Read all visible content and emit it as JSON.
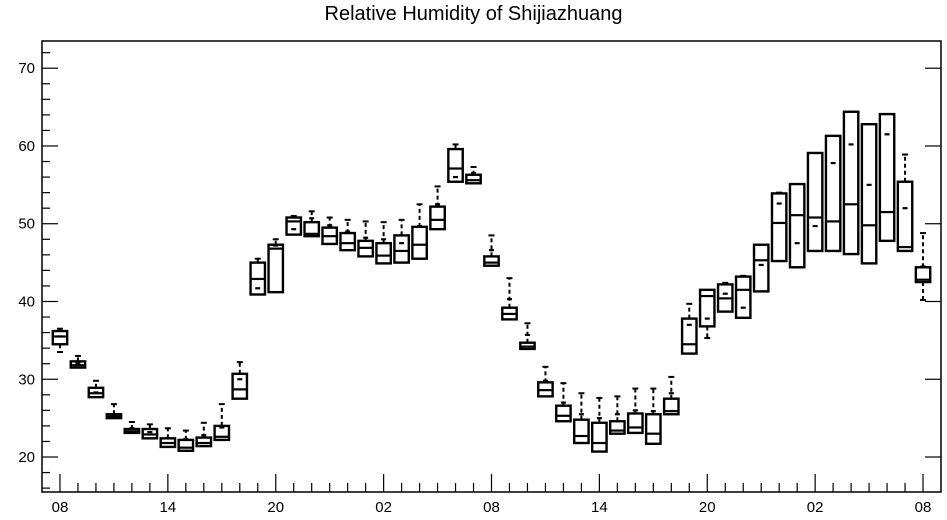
{
  "chart_data": {
    "type": "boxplot",
    "title": "Relative Humidity of Shijiazhuang",
    "xlabel": "",
    "ylabel": "",
    "ylim": [
      15.5,
      73.5
    ],
    "y_ticks": [
      20,
      30,
      40,
      50,
      60,
      70
    ],
    "x_tick_labels": [
      "08",
      "14",
      "20",
      "02",
      "08",
      "14",
      "20",
      "02",
      "08"
    ],
    "x_tick_hours": [
      0,
      6,
      12,
      18,
      24,
      30,
      36,
      42,
      48
    ],
    "x_range_hours": [
      -1,
      49
    ],
    "grid": false,
    "legend": "none",
    "box_width_hours": 0.8,
    "boxes": [
      {
        "hour": 0,
        "q1": 34.5,
        "median": 35.5,
        "q3": 36.2,
        "mean": 35.5,
        "whisker_low": 33.5,
        "whisker_high": 36.5
      },
      {
        "hour": 1,
        "q1": 31.5,
        "median": 31.8,
        "q3": 32.3,
        "mean": 32.0,
        "whisker_low": 31.5,
        "whisker_high": 33.0
      },
      {
        "hour": 2,
        "q1": 27.7,
        "median": 28.2,
        "q3": 28.9,
        "mean": 28.3,
        "whisker_low": 27.7,
        "whisker_high": 29.8
      },
      {
        "hour": 3,
        "q1": 25.0,
        "median": 25.2,
        "q3": 25.5,
        "mean": 25.3,
        "whisker_low": 25.0,
        "whisker_high": 26.8
      },
      {
        "hour": 4,
        "q1": 23.1,
        "median": 23.3,
        "q3": 23.6,
        "mean": 23.7,
        "whisker_low": 23.1,
        "whisker_high": 24.5
      },
      {
        "hour": 5,
        "q1": 22.4,
        "median": 22.9,
        "q3": 23.6,
        "mean": 23.2,
        "whisker_low": 22.4,
        "whisker_high": 24.2
      },
      {
        "hour": 6,
        "q1": 21.3,
        "median": 21.8,
        "q3": 22.4,
        "mean": 22.4,
        "whisker_low": 21.3,
        "whisker_high": 23.7
      },
      {
        "hour": 7,
        "q1": 20.8,
        "median": 21.2,
        "q3": 22.2,
        "mean": 22.3,
        "whisker_low": 20.8,
        "whisker_high": 23.4
      },
      {
        "hour": 8,
        "q1": 21.4,
        "median": 21.8,
        "q3": 22.5,
        "mean": 22.8,
        "whisker_low": 21.4,
        "whisker_high": 24.4
      },
      {
        "hour": 9,
        "q1": 22.2,
        "median": 22.6,
        "q3": 24.0,
        "mean": 23.8,
        "whisker_low": 22.2,
        "whisker_high": 26.8
      },
      {
        "hour": 10,
        "q1": 27.5,
        "median": 28.7,
        "q3": 30.7,
        "mean": 30.0,
        "whisker_low": 27.5,
        "whisker_high": 32.2
      },
      {
        "hour": 11,
        "q1": 40.9,
        "median": 42.9,
        "q3": 45.0,
        "mean": 41.7,
        "whisker_low": 40.9,
        "whisker_high": 45.5
      },
      {
        "hour": 12,
        "q1": 41.2,
        "median": 46.8,
        "q3": 47.3,
        "mean": 47.2,
        "whisker_low": 41.2,
        "whisker_high": 48.0
      },
      {
        "hour": 13,
        "q1": 48.6,
        "median": 50.3,
        "q3": 50.8,
        "mean": 49.3,
        "whisker_low": 48.6,
        "whisker_high": 51.0
      },
      {
        "hour": 14,
        "q1": 48.4,
        "median": 48.7,
        "q3": 50.2,
        "mean": 50.7,
        "whisker_low": 48.4,
        "whisker_high": 51.6
      },
      {
        "hour": 15,
        "q1": 47.4,
        "median": 48.4,
        "q3": 49.5,
        "mean": 49.8,
        "whisker_low": 47.4,
        "whisker_high": 50.8
      },
      {
        "hour": 16,
        "q1": 46.6,
        "median": 47.5,
        "q3": 48.8,
        "mean": 49.0,
        "whisker_low": 46.6,
        "whisker_high": 50.5
      },
      {
        "hour": 17,
        "q1": 45.8,
        "median": 46.9,
        "q3": 47.8,
        "mean": 48.2,
        "whisker_low": 45.8,
        "whisker_high": 50.3
      },
      {
        "hour": 18,
        "q1": 44.9,
        "median": 45.9,
        "q3": 47.5,
        "mean": 48.0,
        "whisker_low": 44.9,
        "whisker_high": 50.2
      },
      {
        "hour": 19,
        "q1": 45.0,
        "median": 46.5,
        "q3": 48.5,
        "mean": 47.5,
        "whisker_low": 45.0,
        "whisker_high": 50.5
      },
      {
        "hour": 20,
        "q1": 45.5,
        "median": 47.3,
        "q3": 49.6,
        "mean": 49.7,
        "whisker_low": 45.5,
        "whisker_high": 52.5
      },
      {
        "hour": 21,
        "q1": 49.3,
        "median": 50.5,
        "q3": 52.2,
        "mean": 52.5,
        "whisker_low": 49.3,
        "whisker_high": 54.8
      },
      {
        "hour": 22,
        "q1": 55.4,
        "median": 57.1,
        "q3": 59.6,
        "mean": 56.0,
        "whisker_low": 55.4,
        "whisker_high": 60.2
      },
      {
        "hour": 23,
        "q1": 55.2,
        "median": 55.6,
        "q3": 56.3,
        "mean": 56.5,
        "whisker_low": 55.2,
        "whisker_high": 57.3
      },
      {
        "hour": 24,
        "q1": 44.6,
        "median": 45.0,
        "q3": 45.8,
        "mean": 46.6,
        "whisker_low": 44.6,
        "whisker_high": 48.5
      },
      {
        "hour": 25,
        "q1": 37.7,
        "median": 38.4,
        "q3": 39.2,
        "mean": 40.3,
        "whisker_low": 37.7,
        "whisker_high": 43.0
      },
      {
        "hour": 26,
        "q1": 33.9,
        "median": 34.2,
        "q3": 34.7,
        "mean": 35.7,
        "whisker_low": 33.9,
        "whisker_high": 37.2
      },
      {
        "hour": 27,
        "q1": 27.8,
        "median": 28.6,
        "q3": 29.6,
        "mean": 29.8,
        "whisker_low": 27.8,
        "whisker_high": 31.6
      },
      {
        "hour": 28,
        "q1": 24.6,
        "median": 25.3,
        "q3": 26.6,
        "mean": 27.0,
        "whisker_low": 24.6,
        "whisker_high": 29.5
      },
      {
        "hour": 29,
        "q1": 21.8,
        "median": 22.7,
        "q3": 24.8,
        "mean": 25.5,
        "whisker_low": 21.8,
        "whisker_high": 28.2
      },
      {
        "hour": 30,
        "q1": 20.7,
        "median": 21.8,
        "q3": 24.4,
        "mean": 25.0,
        "whisker_low": 20.7,
        "whisker_high": 27.6
      },
      {
        "hour": 31,
        "q1": 23.0,
        "median": 23.4,
        "q3": 24.6,
        "mean": 25.5,
        "whisker_low": 23.0,
        "whisker_high": 27.8
      },
      {
        "hour": 32,
        "q1": 23.1,
        "median": 23.8,
        "q3": 25.6,
        "mean": 26.0,
        "whisker_low": 23.1,
        "whisker_high": 28.8
      },
      {
        "hour": 33,
        "q1": 21.7,
        "median": 23.0,
        "q3": 25.5,
        "mean": 25.9,
        "whisker_low": 21.7,
        "whisker_high": 28.8
      },
      {
        "hour": 34,
        "q1": 25.5,
        "median": 25.9,
        "q3": 27.5,
        "mean": 28.2,
        "whisker_low": 25.5,
        "whisker_high": 30.3
      },
      {
        "hour": 35,
        "q1": 33.3,
        "median": 34.5,
        "q3": 37.8,
        "mean": 37.0,
        "whisker_low": 33.3,
        "whisker_high": 39.7
      },
      {
        "hour": 36,
        "q1": 36.8,
        "median": 40.7,
        "q3": 41.5,
        "mean": 37.8,
        "whisker_low": 35.3,
        "whisker_high": 41.5
      },
      {
        "hour": 37,
        "q1": 38.7,
        "median": 40.4,
        "q3": 42.2,
        "mean": 41.0,
        "whisker_low": 38.7,
        "whisker_high": 42.4
      },
      {
        "hour": 38,
        "q1": 37.9,
        "median": 41.5,
        "q3": 43.2,
        "mean": 39.2,
        "whisker_low": 37.9,
        "whisker_high": 43.3
      },
      {
        "hour": 39,
        "q1": 41.3,
        "median": 45.3,
        "q3": 47.3,
        "mean": 44.7,
        "whisker_low": 41.3,
        "whisker_high": 47.3
      },
      {
        "hour": 40,
        "q1": 45.2,
        "median": 50.1,
        "q3": 53.9,
        "mean": 52.6,
        "whisker_low": 45.2,
        "whisker_high": 54.0
      },
      {
        "hour": 41,
        "q1": 44.4,
        "median": 51.1,
        "q3": 55.1,
        "mean": 47.5,
        "whisker_low": 44.4,
        "whisker_high": 55.1
      },
      {
        "hour": 42,
        "q1": 46.5,
        "median": 50.8,
        "q3": 59.1,
        "mean": 49.7,
        "whisker_low": 46.5,
        "whisker_high": 59.1
      },
      {
        "hour": 43,
        "q1": 46.5,
        "median": 50.3,
        "q3": 61.3,
        "mean": 57.8,
        "whisker_low": 46.5,
        "whisker_high": 61.3
      },
      {
        "hour": 44,
        "q1": 46.1,
        "median": 52.5,
        "q3": 64.4,
        "mean": 60.2,
        "whisker_low": 46.1,
        "whisker_high": 64.4
      },
      {
        "hour": 45,
        "q1": 44.9,
        "median": 49.8,
        "q3": 62.8,
        "mean": 55.0,
        "whisker_low": 44.9,
        "whisker_high": 62.8
      },
      {
        "hour": 46,
        "q1": 47.8,
        "median": 51.5,
        "q3": 64.1,
        "mean": 61.5,
        "whisker_low": 47.8,
        "whisker_high": 64.1
      },
      {
        "hour": 47,
        "q1": 46.5,
        "median": 47.0,
        "q3": 55.4,
        "mean": 52.0,
        "whisker_low": 46.5,
        "whisker_high": 58.9
      },
      {
        "hour": 48,
        "q1": 42.5,
        "median": 42.8,
        "q3": 44.4,
        "mean": 44.5,
        "whisker_low": 40.2,
        "whisker_high": 48.8
      }
    ]
  }
}
